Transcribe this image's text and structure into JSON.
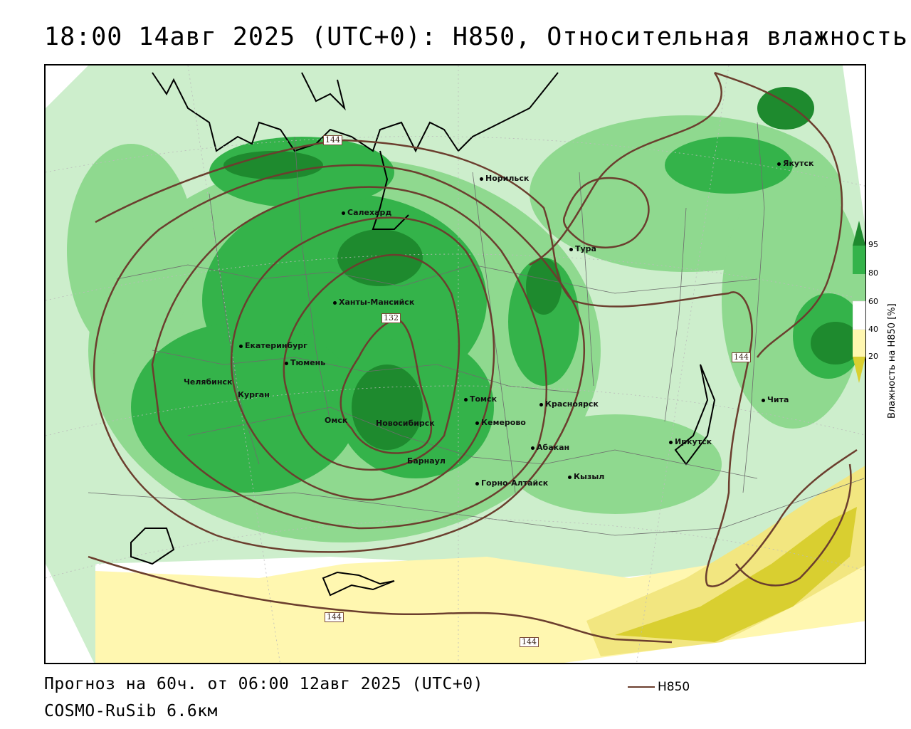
{
  "title": "18:00 14авг 2025 (UTC+0): H850, Относительная влажность",
  "footer": {
    "forecast": "Прогноз на 60ч. от 06:00 12авг 2025 (UTC+0)",
    "model": "COSMO-RuSib 6.6км",
    "line_legend": "H850"
  },
  "colorbar": {
    "title": "Влажность на H850 [%]",
    "ticks": [
      "95",
      "80",
      "60",
      "40",
      "20"
    ],
    "colors": [
      "#1e8a2e",
      "#34b34a",
      "#8fd98f",
      "#cdeecc",
      "#ffffff",
      "#fff7b0",
      "#f2e680",
      "#d9cf30"
    ]
  },
  "contour_labels": [
    "144",
    "132",
    "144",
    "144",
    "144"
  ],
  "cities": [
    "Норильск",
    "Якутск",
    "Салехард",
    "Тура",
    "Ханты-Мансийск",
    "Екатеринбург",
    "Тюмень",
    "Челябинск",
    "Курган",
    "Омск",
    "Новосибирск",
    "Томск",
    "Кемерово",
    "Красноярск",
    "Абакан",
    "Барнаул",
    "Горно-Алтайск",
    "Кызыл",
    "Иркутск",
    "Чита"
  ]
}
